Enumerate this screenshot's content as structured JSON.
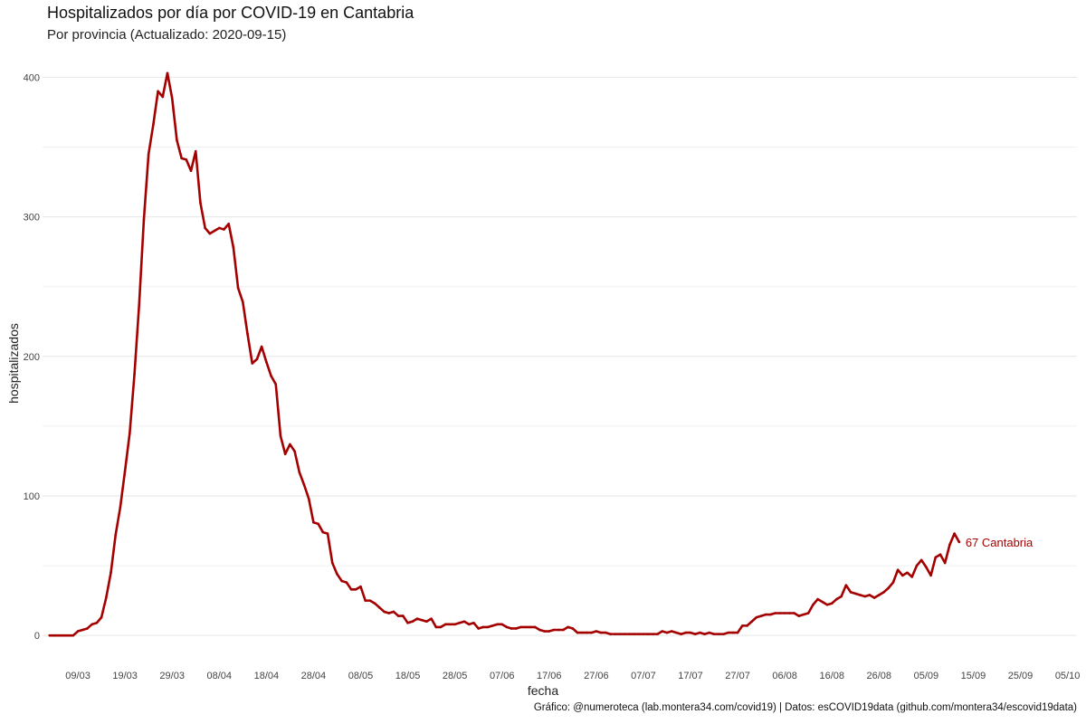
{
  "title": "Hospitalizados por día por COVID-19 en Cantabria",
  "subtitle": "Por provincia  (Actualizado: 2020-09-15)",
  "caption": "Gráfico: @numeroteca (lab.montera34.com/covid19) | Datos: esCOVID19data (github.com/montera34/escovid19data)",
  "chart_data": {
    "type": "line",
    "title": "Hospitalizados por día por COVID-19 en Cantabria",
    "subtitle": "Por provincia  (Actualizado: 2020-09-15)",
    "xlabel": "fecha",
    "ylabel": "hospitalizados",
    "xlim": [
      "2020-03-03",
      "2020-10-05"
    ],
    "ylim": [
      -20,
      410
    ],
    "yticks": [
      0,
      100,
      200,
      300,
      400
    ],
    "xticks": [
      {
        "date": "2020-03-09",
        "label": "09/03"
      },
      {
        "date": "2020-03-19",
        "label": "19/03"
      },
      {
        "date": "2020-03-29",
        "label": "29/03"
      },
      {
        "date": "2020-04-08",
        "label": "08/04"
      },
      {
        "date": "2020-04-18",
        "label": "18/04"
      },
      {
        "date": "2020-04-28",
        "label": "28/04"
      },
      {
        "date": "2020-05-08",
        "label": "08/05"
      },
      {
        "date": "2020-05-18",
        "label": "18/05"
      },
      {
        "date": "2020-05-28",
        "label": "28/05"
      },
      {
        "date": "2020-06-07",
        "label": "07/06"
      },
      {
        "date": "2020-06-17",
        "label": "17/06"
      },
      {
        "date": "2020-06-27",
        "label": "27/06"
      },
      {
        "date": "2020-07-07",
        "label": "07/07"
      },
      {
        "date": "2020-07-17",
        "label": "17/07"
      },
      {
        "date": "2020-07-27",
        "label": "27/07"
      },
      {
        "date": "2020-08-06",
        "label": "06/08"
      },
      {
        "date": "2020-08-16",
        "label": "16/08"
      },
      {
        "date": "2020-08-26",
        "label": "26/08"
      },
      {
        "date": "2020-09-05",
        "label": "05/09"
      },
      {
        "date": "2020-09-15",
        "label": "15/09"
      },
      {
        "date": "2020-09-25",
        "label": "25/09"
      },
      {
        "date": "2020-10-05",
        "label": "05/10"
      }
    ],
    "grid": true,
    "series": [
      {
        "name": "Cantabria",
        "color": "#a50000",
        "end_label": "67 Cantabria",
        "x_start": "2020-03-03",
        "x_end": "2020-09-15",
        "values": [
          0,
          0,
          0,
          0,
          0,
          0,
          3,
          4,
          5,
          8,
          9,
          13,
          27,
          45,
          72,
          92,
          118,
          145,
          187,
          237,
          298,
          345,
          366,
          390,
          386,
          403,
          385,
          355,
          342,
          341,
          333,
          347,
          310,
          292,
          288,
          290,
          292,
          291,
          295,
          278,
          249,
          239,
          216,
          195,
          198,
          207,
          196,
          186,
          180,
          143,
          130,
          137,
          132,
          117,
          108,
          98,
          81,
          80,
          74,
          73,
          52,
          44,
          39,
          38,
          33,
          33,
          35,
          25,
          25,
          23,
          20,
          17,
          16,
          17,
          14,
          14,
          9,
          10,
          12,
          11,
          10,
          12,
          6,
          6,
          8,
          8,
          8,
          9,
          10,
          8,
          9,
          5,
          6,
          6,
          7,
          8,
          8,
          6,
          5,
          5,
          6,
          6,
          6,
          6,
          4,
          3,
          3,
          4,
          4,
          4,
          6,
          5,
          2,
          2,
          2,
          2,
          3,
          2,
          2,
          1,
          1,
          1,
          1,
          1,
          1,
          1,
          1,
          1,
          1,
          1,
          3,
          2,
          3,
          2,
          1,
          2,
          2,
          1,
          2,
          1,
          2,
          1,
          1,
          1,
          2,
          2,
          2,
          7,
          7,
          10,
          13,
          14,
          15,
          15,
          16,
          16,
          16,
          16,
          16,
          14,
          15,
          16,
          22,
          26,
          24,
          22,
          23,
          26,
          28,
          36,
          31,
          30,
          29,
          28,
          29,
          27,
          29,
          31,
          34,
          38,
          47,
          43,
          45,
          42,
          50,
          54,
          49,
          43,
          56,
          58,
          52,
          65,
          73,
          67
        ]
      }
    ]
  }
}
